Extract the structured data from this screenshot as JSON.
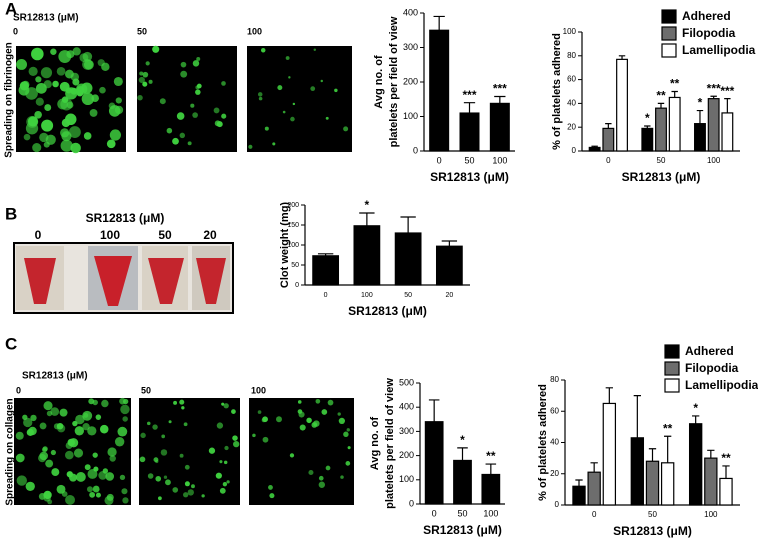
{
  "panels": [
    {
      "letter": "A",
      "image_title": "SR12813 (μM)",
      "image_labels": [
        "0",
        "50",
        "100"
      ],
      "side_label": "Spreading on fibrinogen"
    },
    {
      "letter": "B",
      "image_title": "SR12813 (μM)",
      "image_labels": [
        "0",
        "100",
        "50",
        "20"
      ]
    },
    {
      "letter": "C",
      "image_title": "SR12813 (μM)",
      "image_labels": [
        "0",
        "50",
        "100"
      ],
      "side_label": "Spreading on collagen"
    }
  ],
  "chart_data": [
    {
      "type": "bar",
      "ylabel": [
        "Avg no. of",
        "platelets per field of view"
      ],
      "xlabel": "SR12813 (μM)",
      "categories": [
        "0",
        "50",
        "100"
      ],
      "values": [
        350,
        110,
        138
      ],
      "errors": [
        40,
        30,
        20
      ],
      "annotations": [
        null,
        "***",
        "***"
      ],
      "color": "#000000",
      "ylim": [
        0,
        400
      ],
      "yticks": [
        0,
        100,
        200,
        300,
        400
      ]
    },
    {
      "type": "bar",
      "ylabel": [
        "% of platelets adhered"
      ],
      "xlabel": "SR12813 (μM)",
      "categories": [
        "0",
        "50",
        "100"
      ],
      "series": [
        {
          "name": "Adhered",
          "color": "#000000",
          "values": [
            3,
            19,
            23
          ],
          "errors": [
            1,
            2,
            11
          ],
          "annotations": [
            null,
            "*",
            "*"
          ]
        },
        {
          "name": "Filopodia",
          "color": "#6d6d6d",
          "values": [
            19,
            36,
            44
          ],
          "errors": [
            4,
            4,
            2
          ],
          "annotations": [
            null,
            "**",
            "***"
          ]
        },
        {
          "name": "Lamellipodia",
          "color": "#ffffff",
          "values": [
            77,
            45,
            32
          ],
          "errors": [
            3,
            5,
            12
          ],
          "annotations": [
            null,
            "**",
            "***"
          ]
        }
      ],
      "legend": "top-right",
      "ylim": [
        0,
        100
      ],
      "yticks": [
        0,
        20,
        40,
        60,
        80,
        100
      ]
    },
    {
      "type": "bar",
      "ylabel": [
        "Clot weight (mg)"
      ],
      "xlabel": "SR12813 (μM)",
      "categories": [
        "0",
        "100",
        "50",
        "20"
      ],
      "values": [
        73,
        148,
        130,
        97
      ],
      "errors": [
        5,
        32,
        40,
        13
      ],
      "annotations": [
        null,
        "*",
        null,
        null
      ],
      "color": "#000000",
      "ylim": [
        0,
        200
      ],
      "yticks": [
        0,
        50,
        100,
        150,
        200
      ]
    },
    {
      "type": "bar",
      "ylabel": [
        "Avg no. of",
        "platelets per field of view"
      ],
      "xlabel": "SR12813 (μM)",
      "categories": [
        "0",
        "50",
        "100"
      ],
      "values": [
        340,
        180,
        122
      ],
      "errors": [
        90,
        52,
        43
      ],
      "annotations": [
        null,
        "*",
        "**"
      ],
      "color": "#000000",
      "ylim": [
        0,
        500
      ],
      "yticks": [
        0,
        100,
        200,
        300,
        400,
        500
      ]
    },
    {
      "type": "bar",
      "ylabel": [
        "% of platelets adhered"
      ],
      "xlabel": "SR12813 (μM)",
      "categories": [
        "0",
        "50",
        "100"
      ],
      "series": [
        {
          "name": "Adhered",
          "color": "#000000",
          "values": [
            12,
            43,
            52
          ],
          "errors": [
            4,
            27,
            5
          ],
          "annotations": [
            null,
            null,
            "*"
          ]
        },
        {
          "name": "Filopodia",
          "color": "#6d6d6d",
          "values": [
            21,
            28,
            30
          ],
          "errors": [
            6,
            8,
            5
          ],
          "annotations": [
            null,
            null,
            null
          ]
        },
        {
          "name": "Lamellipodia",
          "color": "#ffffff",
          "values": [
            65,
            27,
            17
          ],
          "errors": [
            10,
            17,
            8
          ],
          "annotations": [
            null,
            "**",
            "**"
          ]
        }
      ],
      "legend": "top-right",
      "ylim": [
        0,
        80
      ],
      "yticks": [
        0,
        20,
        40,
        60,
        80
      ]
    }
  ]
}
